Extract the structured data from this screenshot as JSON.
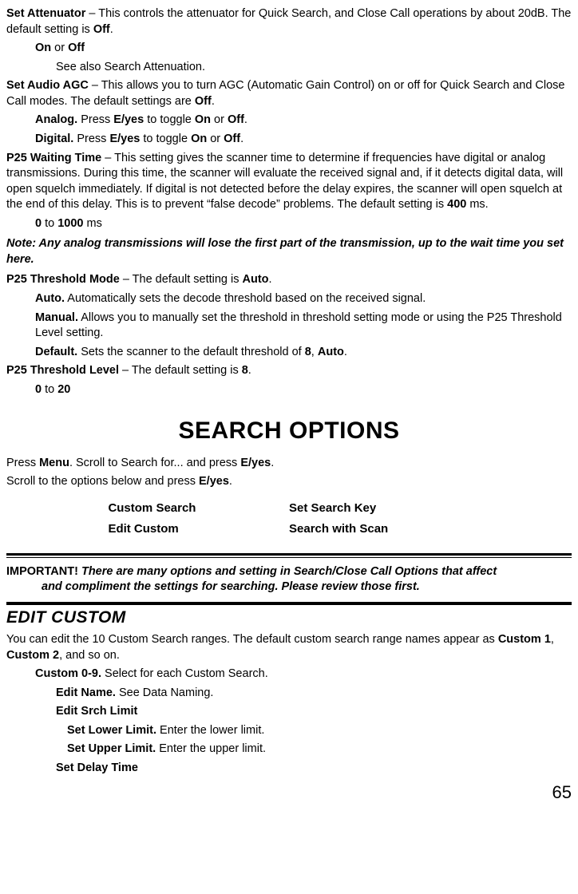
{
  "p_set_attenuator": {
    "intro_b": "Set Attenuator",
    "intro_rest": " – This controls the attenuator for Quick Search, and Close Call operations by about 20dB. The default setting is ",
    "intro_b2": "Off",
    "intro_tail": ".",
    "opts_b1": "On",
    "opts_mid": " or ",
    "opts_b2": "Off",
    "see_also": "See also Search Attenuation."
  },
  "p_audio_agc": {
    "intro_b": "Set Audio AGC",
    "intro_rest": " – This allows you to turn AGC (Automatic Gain Control) on or off for Quick Search and Close Call modes. The default settings are ",
    "intro_b2": "Off",
    "intro_tail": ".",
    "analog_b": "Analog.",
    "analog_mid1": " Press ",
    "analog_b2": "E/yes",
    "analog_mid2": " to toggle ",
    "analog_b3": "On",
    "analog_mid3": " or ",
    "analog_b4": "Off",
    "analog_tail": ".",
    "digital_b": "Digital.",
    "digital_mid1": " Press ",
    "digital_b2": "E/yes",
    "digital_mid2": " to toggle ",
    "digital_b3": "On",
    "digital_mid3": " or ",
    "digital_b4": "Off",
    "digital_tail": "."
  },
  "p_p25_wait": {
    "intro_b": "P25 Waiting Time",
    "intro_rest": " – This setting gives the scanner time to determine if frequencies have digital or analog transmissions. During this time, the scanner will evaluate the received signal and, if it detects digital data, will open squelch immediately. If digital is not detected before the delay expires, the scanner will open squelch at the end of this delay. This is to prevent “false decode” problems. The default setting is ",
    "intro_b2": "400",
    "intro_tail": " ms.",
    "range_b1": "0",
    "range_mid": " to ",
    "range_b2": "1000",
    "range_tail": " ms"
  },
  "note_text": "Note: Any analog transmissions will lose the first part of the transmission, up to the wait time you set here.",
  "p_p25_thresh_mode": {
    "intro_b": "P25 Threshold Mode",
    "intro_rest": " – The default setting is ",
    "intro_b2": "Auto",
    "intro_tail": ".",
    "auto_b": "Auto.",
    "auto_rest": " Automatically sets the decode threshold based on the received signal.",
    "manual_b": "Manual.",
    "manual_rest": "  Allows you to manually set the threshold in threshold setting mode or using the P25 Threshold Level setting.",
    "default_b": "Default.",
    "default_mid1": " Sets the scanner to the default threshold of ",
    "default_b2": "8",
    "default_mid2": ", ",
    "default_b3": "Auto",
    "default_tail": "."
  },
  "p_p25_thresh_level": {
    "intro_b": "P25 Threshold Level",
    "intro_rest": " – The default setting is ",
    "intro_b2": "8",
    "intro_tail": ".",
    "range_b1": "0",
    "range_mid": " to ",
    "range_b2": "20"
  },
  "section_title": "SEARCH OPTIONS",
  "search_intro": {
    "l1_pre": "Press ",
    "l1_b1": "Menu",
    "l1_mid": ". Scroll to Search for... and press ",
    "l1_b2": "E/yes",
    "l1_tail": ".",
    "l2_pre": "Scroll to the options below and press ",
    "l2_b1": "E/yes",
    "l2_tail": "."
  },
  "options_table": {
    "r1c1": "Custom Search",
    "r1c2": "Set Search Key",
    "r2c1": "Edit Custom",
    "r2c2": "Search with Scan"
  },
  "important": {
    "lead": "IMPORTANT! ",
    "body_l1": "There are many options and setting in Search/Close Call Options that affect",
    "body_l2": "and compliment the settings for searching. Please review those first."
  },
  "edit_custom": {
    "heading": "EDIT CUSTOM",
    "intro_pre": "You can edit the 10 Custom Search ranges. The default custom search range names appear as ",
    "intro_b1": "Custom 1",
    "intro_mid": ", ",
    "intro_b2": "Custom 2",
    "intro_tail": ", and so on.",
    "row_custom_b": "Custom 0-9.",
    "row_custom_rest": " Select for each Custom Search.",
    "edit_name_b": "Edit Name.",
    "edit_name_rest": " See Data Naming.",
    "edit_srch_limit": "Edit Srch Limit",
    "set_lower_b": "Set Lower Limit.",
    "set_lower_rest": " Enter the lower limit.",
    "set_upper_b": "Set Upper Limit.",
    "set_upper_rest": " Enter the upper limit.",
    "set_delay": "Set Delay Time"
  },
  "page_number": "65"
}
